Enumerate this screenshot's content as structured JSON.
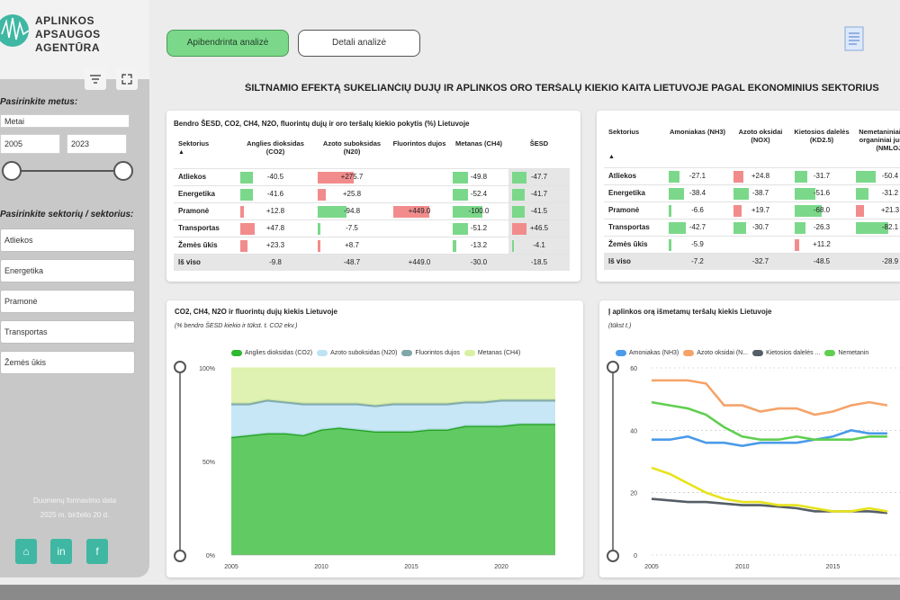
{
  "logo": {
    "line1": "APLINKOS",
    "line2": "APSAUGOS",
    "line3": "AGENTŪRA"
  },
  "tabs": {
    "summary": "Apibendrinta analizė",
    "detail": "Detali analizė"
  },
  "title": "ŠILTNAMIO EFEKTĄ SUKELIANČIŲ DUJŲ IR APLINKOS ORO TERŠALŲ KIEKIO KAITA LIETUVOJE PAGAL EKONOMINIUS SEKTORIUS",
  "sidebar": {
    "year_label": "Pasirinkite metus:",
    "year_field": "Metai",
    "year_from": "2005",
    "year_to": "2023",
    "sector_label": "Pasirinkite sektorių / sektorius:",
    "sectors": [
      "Atliekos",
      "Energetika",
      "Pramonė",
      "Transportas",
      "Žemės ūkis"
    ],
    "note_line1": "Duomenų formavimo data",
    "note_line2": "2025 m. birželio 20 d.",
    "filter_icon": "filter-icon",
    "expand_icon": "expand-icon"
  },
  "table1": {
    "title": "Bendro ŠESD, CO2, CH4, N2O, fluorintų dujų ir oro teršalų kiekio pokytis (%) Lietuvoje",
    "headers": [
      "Sektorius",
      "Anglies dioksidas (CO2)",
      "Azoto suboksidas (N20)",
      "Fluorintos dujos",
      "Metanas (CH4)",
      "ŠESD"
    ],
    "rows": [
      {
        "name": "Atliekos",
        "vals": [
          "-40.5",
          "+275.7",
          "",
          "-49.8",
          "-47.7"
        ]
      },
      {
        "name": "Energetika",
        "vals": [
          "-41.6",
          "+25.8",
          "",
          "-52.4",
          "-41.7"
        ]
      },
      {
        "name": "Pramonė",
        "vals": [
          "+12.8",
          "-94.8",
          "+449.0",
          "-100.0",
          "-41.5"
        ]
      },
      {
        "name": "Transportas",
        "vals": [
          "+47.8",
          "-7.5",
          "",
          "-51.2",
          "+46.5"
        ]
      },
      {
        "name": "Žemės ūkis",
        "vals": [
          "+23.3",
          "+8.7",
          "",
          "-13.2",
          "-4.1"
        ]
      }
    ],
    "total": {
      "name": "Iš viso",
      "vals": [
        "-9.8",
        "-48.7",
        "+449.0",
        "-30.0",
        "-18.5"
      ]
    }
  },
  "table2": {
    "headers": [
      "Sektorius",
      "Amoniakas (NH3)",
      "Azoto oksidai (NOX)",
      "Kietosios dalelės (KD2.5)",
      "Nemetaniniai lakieji organiniai junginiai (NMLOJ)"
    ],
    "rows": [
      {
        "name": "Atliekos",
        "vals": [
          "-27.1",
          "+24.8",
          "-31.7",
          "-50.4"
        ]
      },
      {
        "name": "Energetika",
        "vals": [
          "-38.4",
          "-38.7",
          "-51.6",
          "-31.2"
        ]
      },
      {
        "name": "Pramonė",
        "vals": [
          "-6.6",
          "+19.7",
          "-68.0",
          "+21.3"
        ]
      },
      {
        "name": "Transportas",
        "vals": [
          "-42.7",
          "-30.7",
          "-26.3",
          "-82.1"
        ]
      },
      {
        "name": "Žemės ūkis",
        "vals": [
          "-5.9",
          "",
          "+11.2",
          ""
        ]
      }
    ],
    "total": {
      "name": "Iš viso",
      "vals": [
        "-7.2",
        "-32.7",
        "-48.5",
        "-28.9"
      ]
    }
  },
  "chart_data": [
    {
      "type": "area",
      "title": "CO2, CH4, N2O ir fluorintų dujų kiekis Lietuvoje",
      "subtitle": "(% bendro ŠESD kiekio ir tūkst. t. CO2 ekv.)",
      "x": [
        2005,
        2006,
        2007,
        2008,
        2009,
        2010,
        2011,
        2012,
        2013,
        2014,
        2015,
        2016,
        2017,
        2018,
        2019,
        2020,
        2021,
        2022,
        2023
      ],
      "series": [
        {
          "name": "Anglies dioksidas (CO2)",
          "color": "#2eb82e",
          "values": [
            63,
            64,
            65,
            65,
            64,
            67,
            68,
            67,
            66,
            66,
            66,
            67,
            67,
            69,
            69,
            69,
            70,
            70,
            70
          ]
        },
        {
          "name": "Azoto suboksidas (N20)",
          "color": "#bde3f5",
          "values": [
            17,
            16,
            17,
            16,
            16,
            13,
            12,
            13,
            13,
            14,
            14,
            13,
            13,
            12,
            12,
            13,
            12,
            12,
            12
          ]
        },
        {
          "name": "Fluorintos dujos",
          "color": "#7fa7a7",
          "values": [
            1,
            1,
            1,
            1,
            1,
            1,
            1,
            1,
            1,
            1,
            1,
            1,
            1,
            1,
            1,
            1,
            1,
            1,
            1
          ]
        },
        {
          "name": "Metanas (CH4)",
          "color": "#d9f0a3",
          "values": [
            19,
            19,
            17,
            18,
            19,
            19,
            19,
            19,
            20,
            19,
            19,
            19,
            19,
            18,
            18,
            17,
            17,
            17,
            17
          ]
        }
      ],
      "ylim": [
        0,
        100
      ],
      "yticks": [
        "0%",
        "50%",
        "100%"
      ],
      "xticks": [
        2005,
        2010,
        2015,
        2020
      ]
    },
    {
      "type": "line",
      "title": "Į aplinkos orą išmetamų teršalų kiekis Lietuvoje",
      "subtitle": "(tūkst t.)",
      "x": [
        2005,
        2006,
        2007,
        2008,
        2009,
        2010,
        2011,
        2012,
        2013,
        2014,
        2015,
        2016,
        2017,
        2018
      ],
      "series": [
        {
          "name": "Amoniakas (NH3)",
          "color": "#4a9be8",
          "values": [
            37,
            37,
            38,
            36,
            36,
            35,
            36,
            36,
            36,
            37,
            38,
            40,
            39,
            39
          ]
        },
        {
          "name": "Azoto oksidai (N...",
          "color": "#f5a36a",
          "values": [
            56,
            56,
            56,
            55,
            48,
            48,
            46,
            47,
            47,
            45,
            46,
            48,
            49,
            48
          ]
        },
        {
          "name": "Kietosios dalelės ...",
          "color": "#555e66",
          "values": [
            18,
            17.5,
            17,
            17,
            16.5,
            16,
            16,
            15.5,
            15,
            14,
            14,
            14,
            14,
            13.5
          ]
        },
        {
          "name": "Nemetanin",
          "color": "#5fcf4f",
          "values": [
            49,
            48,
            47,
            45,
            41,
            38,
            37,
            37,
            38,
            37,
            37,
            37,
            38,
            38
          ]
        },
        {
          "name": "",
          "color": "#e7e31e",
          "values": [
            28,
            26,
            23,
            20,
            18,
            17,
            17,
            16,
            16,
            15,
            14,
            14,
            15,
            14
          ]
        }
      ],
      "ylim": [
        0,
        60
      ],
      "yticks": [
        "0",
        "20",
        "40",
        "60"
      ],
      "xticks": [
        2005,
        2010,
        2015
      ]
    }
  ]
}
